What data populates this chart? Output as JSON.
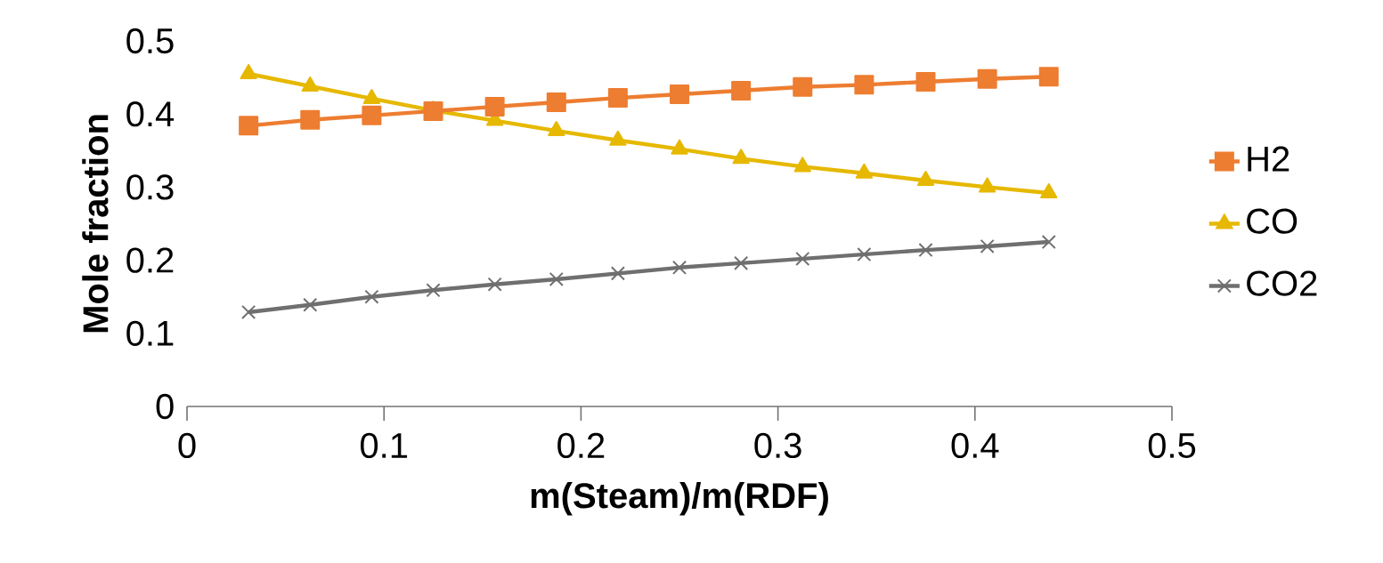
{
  "chart_data": {
    "type": "line",
    "xlabel": "m(Steam)/m(RDF)",
    "ylabel": "Mole fraction",
    "x": [
      0.03125,
      0.0625,
      0.09375,
      0.125,
      0.15625,
      0.1875,
      0.21875,
      0.25,
      0.28125,
      0.3125,
      0.34375,
      0.375,
      0.40625,
      0.4375
    ],
    "series": [
      {
        "name": "H2",
        "color": "#ed7d31",
        "marker": "square",
        "values": [
          0.384,
          0.392,
          0.398,
          0.404,
          0.41,
          0.416,
          0.422,
          0.427,
          0.432,
          0.437,
          0.44,
          0.444,
          0.448,
          0.451
        ]
      },
      {
        "name": "CO",
        "color": "#e6b800",
        "marker": "triangle",
        "values": [
          0.455,
          0.438,
          0.421,
          0.405,
          0.391,
          0.377,
          0.364,
          0.352,
          0.339,
          0.328,
          0.319,
          0.309,
          0.3,
          0.292
        ]
      },
      {
        "name": "CO2",
        "color": "#6f6f6f",
        "marker": "cross",
        "values": [
          0.129,
          0.139,
          0.15,
          0.159,
          0.167,
          0.174,
          0.182,
          0.19,
          0.196,
          0.202,
          0.208,
          0.214,
          0.219,
          0.225
        ]
      }
    ],
    "xlim": [
      0,
      0.5
    ],
    "ylim": [
      0,
      0.5
    ],
    "xticks": [
      0,
      0.1,
      0.2,
      0.3,
      0.4,
      0.5
    ],
    "yticks": [
      0,
      0.1,
      0.2,
      0.3,
      0.4,
      0.5
    ],
    "grid": false,
    "legend": "right",
    "line_style": "solid"
  }
}
